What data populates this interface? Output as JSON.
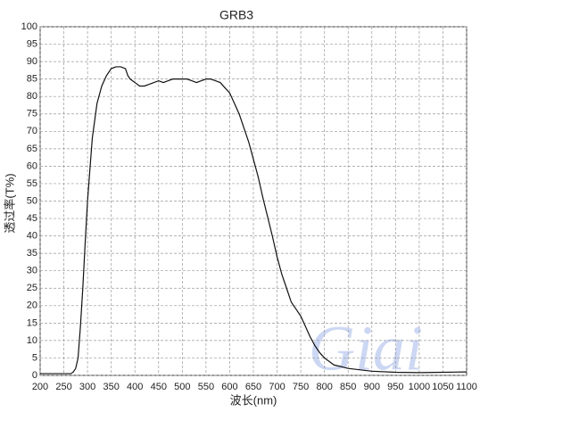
{
  "chart_data": {
    "type": "line",
    "title": "GRB3",
    "x_label": "波长(nm)",
    "y_label": "透过率(T%)",
    "watermark": "Giai",
    "x": [
      200,
      250,
      265,
      270,
      275,
      280,
      285,
      290,
      295,
      300,
      310,
      320,
      330,
      340,
      350,
      360,
      370,
      380,
      385,
      390,
      400,
      410,
      420,
      430,
      440,
      450,
      460,
      470,
      480,
      490,
      500,
      510,
      520,
      530,
      540,
      550,
      560,
      570,
      580,
      590,
      600,
      610,
      620,
      630,
      640,
      650,
      660,
      670,
      680,
      690,
      700,
      710,
      720,
      730,
      740,
      750,
      760,
      770,
      780,
      790,
      800,
      820,
      850,
      900,
      950,
      1000,
      1050,
      1100
    ],
    "series": [
      {
        "name": "GRB3",
        "color": "#111111",
        "values": [
          0.5,
          0.5,
          0.5,
          1,
          2,
          5,
          14,
          25,
          38,
          50,
          68,
          78,
          83,
          86,
          88,
          88.5,
          88.5,
          88,
          86,
          85,
          84,
          83,
          83,
          83.5,
          84,
          84.5,
          84,
          84.5,
          85,
          85,
          85,
          85,
          84.5,
          84,
          84.5,
          85,
          85,
          84.5,
          84,
          82.5,
          81,
          78,
          75,
          71,
          67,
          62,
          57,
          51,
          45.5,
          40,
          34,
          29,
          25,
          21,
          19,
          17,
          14,
          11,
          8.5,
          6.5,
          5,
          3,
          2,
          1.2,
          0.9,
          0.8,
          0.9,
          1
        ]
      }
    ],
    "xlim": [
      200,
      1100
    ],
    "xticks": [
      200,
      250,
      300,
      350,
      400,
      450,
      500,
      550,
      600,
      650,
      700,
      750,
      800,
      850,
      900,
      950,
      1000,
      1050,
      1100
    ],
    "ylim": [
      0,
      100
    ],
    "yticks": [
      0,
      5,
      10,
      15,
      20,
      25,
      30,
      35,
      40,
      45,
      50,
      55,
      60,
      65,
      70,
      75,
      80,
      85,
      90,
      95,
      100
    ],
    "grid": true
  }
}
